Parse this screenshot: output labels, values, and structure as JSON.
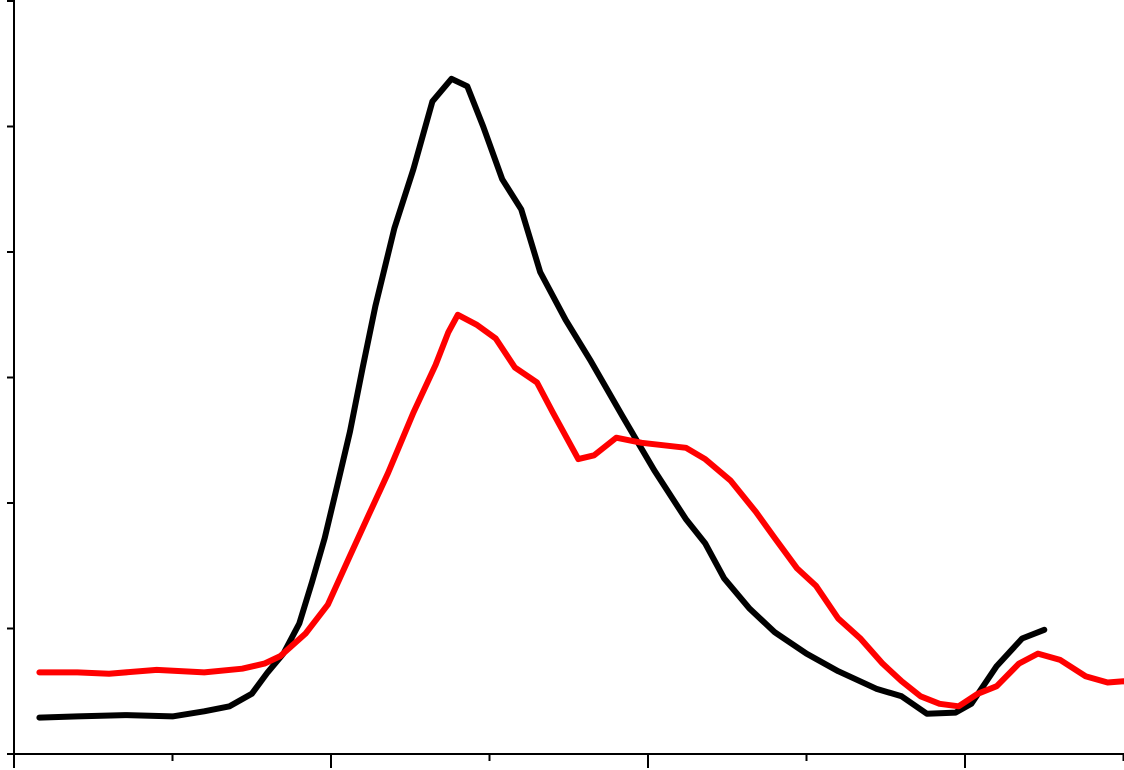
{
  "chart_data": {
    "type": "line",
    "title": "",
    "xlabel": "",
    "ylabel": "",
    "xlim": [
      0,
      35
    ],
    "ylim": [
      0,
      6
    ],
    "x_ticks_major": [
      0,
      10,
      20,
      30
    ],
    "x_ticks_minor": [
      5,
      15,
      25,
      35
    ],
    "y_ticks": [
      0,
      1,
      2,
      3,
      4,
      5,
      6
    ],
    "grid": false,
    "legend": "none",
    "series": [
      {
        "color": "#000000",
        "points": [
          [
            0.8,
            0.29
          ],
          [
            2.0,
            0.3
          ],
          [
            3.5,
            0.31
          ],
          [
            5.0,
            0.3
          ],
          [
            6.0,
            0.34
          ],
          [
            6.8,
            0.38
          ],
          [
            7.5,
            0.48
          ],
          [
            8.0,
            0.65
          ],
          [
            8.5,
            0.8
          ],
          [
            9.0,
            1.04
          ],
          [
            9.4,
            1.37
          ],
          [
            9.8,
            1.72
          ],
          [
            10.2,
            2.14
          ],
          [
            10.6,
            2.57
          ],
          [
            11.0,
            3.08
          ],
          [
            11.4,
            3.57
          ],
          [
            12.0,
            4.19
          ],
          [
            12.6,
            4.66
          ],
          [
            13.2,
            5.2
          ],
          [
            13.8,
            5.38
          ],
          [
            14.3,
            5.32
          ],
          [
            14.8,
            5.0
          ],
          [
            15.4,
            4.58
          ],
          [
            16.0,
            4.34
          ],
          [
            16.6,
            3.84
          ],
          [
            17.4,
            3.46
          ],
          [
            18.2,
            3.13
          ],
          [
            19.2,
            2.69
          ],
          [
            20.2,
            2.26
          ],
          [
            21.2,
            1.87
          ],
          [
            21.8,
            1.68
          ],
          [
            22.4,
            1.4
          ],
          [
            23.2,
            1.16
          ],
          [
            24.0,
            0.97
          ],
          [
            25.0,
            0.8
          ],
          [
            26.0,
            0.66
          ],
          [
            27.2,
            0.52
          ],
          [
            28.0,
            0.46
          ],
          [
            28.8,
            0.32
          ],
          [
            29.7,
            0.33
          ],
          [
            30.2,
            0.4
          ],
          [
            31.0,
            0.7
          ],
          [
            31.8,
            0.92
          ],
          [
            32.5,
            0.99
          ]
        ]
      },
      {
        "color": "#ff0000",
        "points": [
          [
            0.8,
            0.65
          ],
          [
            2.0,
            0.65
          ],
          [
            3.0,
            0.64
          ],
          [
            4.5,
            0.67
          ],
          [
            6.0,
            0.65
          ],
          [
            7.2,
            0.68
          ],
          [
            7.9,
            0.72
          ],
          [
            8.4,
            0.78
          ],
          [
            9.2,
            0.96
          ],
          [
            9.9,
            1.19
          ],
          [
            10.6,
            1.58
          ],
          [
            11.2,
            1.91
          ],
          [
            11.8,
            2.24
          ],
          [
            12.6,
            2.72
          ],
          [
            13.3,
            3.1
          ],
          [
            13.7,
            3.36
          ],
          [
            14.0,
            3.5
          ],
          [
            14.6,
            3.42
          ],
          [
            15.2,
            3.31
          ],
          [
            15.8,
            3.08
          ],
          [
            16.5,
            2.96
          ],
          [
            17.0,
            2.72
          ],
          [
            17.8,
            2.35
          ],
          [
            18.3,
            2.38
          ],
          [
            19.0,
            2.52
          ],
          [
            19.8,
            2.48
          ],
          [
            20.5,
            2.46
          ],
          [
            21.2,
            2.44
          ],
          [
            21.8,
            2.35
          ],
          [
            22.6,
            2.18
          ],
          [
            23.4,
            1.93
          ],
          [
            24.0,
            1.72
          ],
          [
            24.7,
            1.48
          ],
          [
            25.3,
            1.34
          ],
          [
            26.0,
            1.08
          ],
          [
            26.7,
            0.92
          ],
          [
            27.4,
            0.72
          ],
          [
            28.0,
            0.58
          ],
          [
            28.6,
            0.46
          ],
          [
            29.2,
            0.4
          ],
          [
            29.8,
            0.38
          ],
          [
            30.4,
            0.48
          ],
          [
            31.0,
            0.54
          ],
          [
            31.7,
            0.72
          ],
          [
            32.3,
            0.8
          ],
          [
            33.0,
            0.75
          ],
          [
            33.8,
            0.62
          ],
          [
            34.5,
            0.57
          ],
          [
            35.0,
            0.58
          ],
          [
            35.5,
            0.55
          ]
        ]
      }
    ]
  }
}
